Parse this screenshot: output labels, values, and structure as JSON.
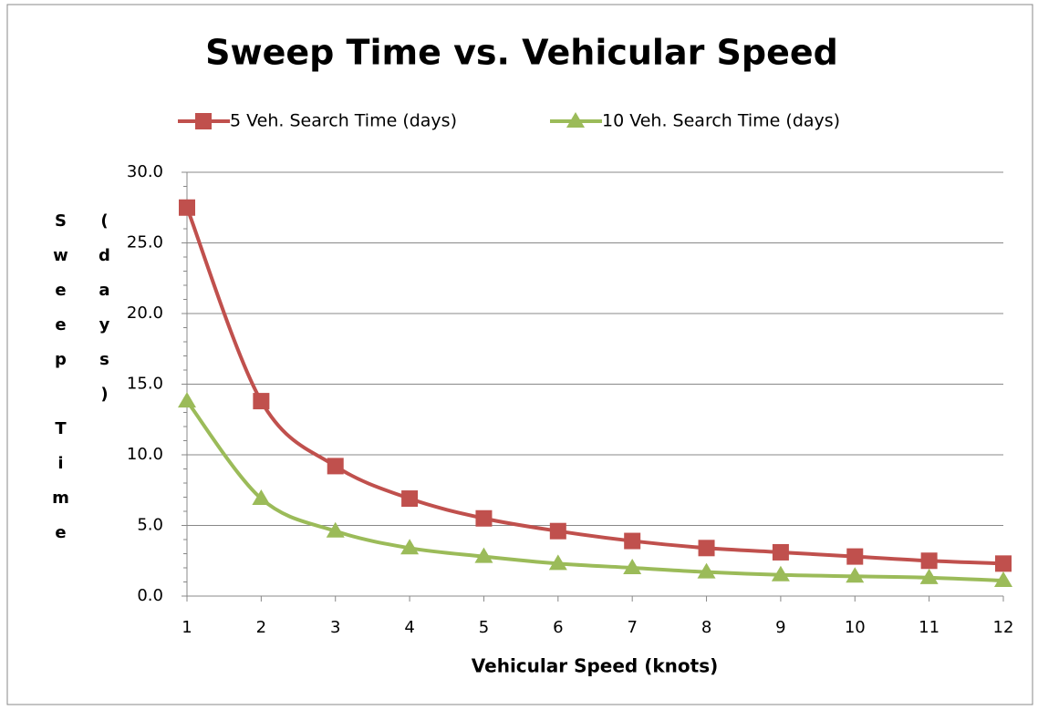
{
  "chart_data": {
    "type": "line",
    "title": "Sweep Time vs. Vehicular Speed",
    "x_label": "Vehicular Speed (knots)",
    "y_label": "Sweep Time (days)",
    "x": [
      1,
      2,
      3,
      4,
      5,
      6,
      7,
      8,
      9,
      10,
      11,
      12
    ],
    "series": [
      {
        "name": "5 Veh. Search Time (days)",
        "color": "#c0504d",
        "marker": "square",
        "values": [
          27.5,
          13.8,
          9.2,
          6.9,
          5.5,
          4.6,
          3.9,
          3.4,
          3.1,
          2.8,
          2.5,
          2.3
        ]
      },
      {
        "name": "10 Veh. Search Time (days)",
        "color": "#9bbb59",
        "marker": "triangle",
        "values": [
          13.8,
          6.9,
          4.6,
          3.4,
          2.8,
          2.3,
          2.0,
          1.7,
          1.5,
          1.4,
          1.3,
          1.1
        ]
      }
    ],
    "xlim": [
      1,
      12
    ],
    "xticks": [
      1,
      2,
      3,
      4,
      5,
      6,
      7,
      8,
      9,
      10,
      11,
      12
    ],
    "ylim": [
      0,
      30
    ],
    "yticks": [
      {
        "value": 0,
        "label": "0.0"
      },
      {
        "value": 5,
        "label": "5.0"
      },
      {
        "value": 10,
        "label": "10.0"
      },
      {
        "value": 15,
        "label": "15.0"
      },
      {
        "value": 20,
        "label": "20.0"
      },
      {
        "value": 25,
        "label": "25.0"
      },
      {
        "value": 30,
        "label": "30.0"
      }
    ],
    "grid": true,
    "legend": "top"
  }
}
